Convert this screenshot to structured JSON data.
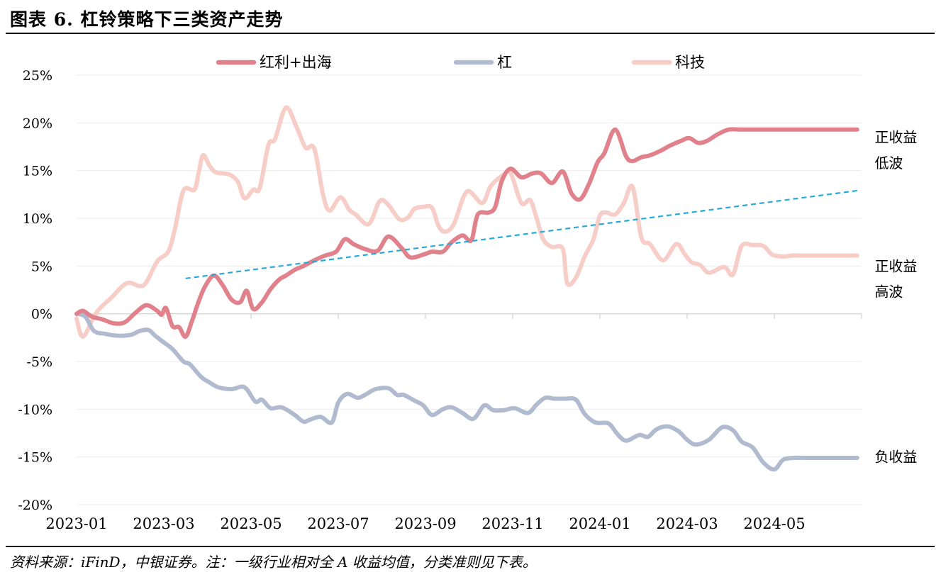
{
  "header": {
    "title": "图表 6. 杠铃策略下三类资产走势"
  },
  "footer": {
    "source": "资料来源：iFinD，中银证券。注：一级行业相对全 A 收益均值，分类准则见下表。"
  },
  "colors": {
    "red": "#e0818b",
    "gray": "#b1bbd0",
    "pink": "#f7cdc8",
    "trend": "#27aad8",
    "grid": "#ececec"
  },
  "chart_data": {
    "type": "line",
    "title": "杠铃策略下三类资产走势",
    "xlabel": "",
    "ylabel": "",
    "x_range": [
      0,
      18
    ],
    "ylim": [
      -20,
      25
    ],
    "yticks": [
      25,
      20,
      15,
      10,
      5,
      0,
      -5,
      -10,
      -15,
      -20
    ],
    "ytick_labels": [
      "25%",
      "20%",
      "15%",
      "10%",
      "5%",
      "0%",
      "-5%",
      "-10%",
      "-15%",
      "-20%"
    ],
    "xticks": [
      0,
      2,
      4,
      6,
      8,
      10,
      12,
      14,
      16
    ],
    "xtick_labels": [
      "2023-01",
      "2023-03",
      "2023-05",
      "2023-07",
      "2023-09",
      "2023-11",
      "2024-01",
      "2024-03",
      "2024-05"
    ],
    "legend": {
      "placement": "top",
      "entries": [
        "红利+出海",
        "杠",
        "科技"
      ]
    },
    "series": [
      {
        "name": "科技",
        "color": "#f7cdc8",
        "x": [
          0,
          0.15,
          0.45,
          0.8,
          1.15,
          1.45,
          1.6,
          1.85,
          2.1,
          2.25,
          2.45,
          2.7,
          2.8,
          2.9,
          3.05,
          3.2,
          3.5,
          3.7,
          3.85,
          4.05,
          4.2,
          4.4,
          4.55,
          4.8,
          5.05,
          5.25,
          5.45,
          5.65,
          5.8,
          6.05,
          6.25,
          6.4,
          6.7,
          6.95,
          7.15,
          7.4,
          7.6,
          7.75,
          7.95,
          8.15,
          8.3,
          8.45,
          8.65,
          8.95,
          9.3,
          9.5,
          9.8,
          9.95,
          10.2,
          10.4,
          10.55,
          10.7,
          10.9,
          11.15,
          11.25,
          11.45,
          11.65,
          11.85,
          12.0,
          12.15,
          12.35,
          12.55,
          12.75,
          12.95,
          13.15,
          13.45,
          13.75,
          13.95,
          14.1,
          14.3,
          14.5,
          14.85,
          15.05,
          15.25,
          15.5,
          15.75,
          15.95,
          16.2,
          16.4,
          16.6,
          16.8,
          17.05,
          17.3,
          17.5,
          17.75,
          17.9
        ],
        "y": [
          -0.5,
          -2.4,
          0.1,
          1.7,
          3.2,
          2.9,
          3.3,
          5.5,
          6.5,
          8.8,
          12.9,
          13.0,
          14.8,
          16.6,
          15.5,
          14.8,
          14.6,
          13.8,
          12.1,
          13.0,
          13.2,
          17.7,
          18.3,
          21.6,
          19.5,
          17.4,
          17.3,
          12.5,
          10.8,
          12.2,
          10.9,
          10.4,
          9.4,
          11.8,
          11.4,
          9.9,
          10.1,
          11.0,
          11.2,
          11.1,
          9.2,
          8.6,
          9.4,
          12.8,
          11.6,
          13.4,
          14.6,
          14.8,
          11.6,
          11.9,
          10.0,
          7.8,
          7.0,
          6.8,
          3.2,
          3.8,
          6.0,
          7.8,
          10.3,
          10.6,
          10.4,
          11.6,
          13.3,
          8.0,
          7.3,
          5.6,
          7.3,
          6.2,
          5.4,
          5.1,
          4.3,
          4.9,
          4.1,
          7.1,
          7.2,
          7.1,
          6.2,
          6.0,
          6.1,
          6.1,
          6.1,
          6.1,
          6.1,
          6.1,
          6.1,
          6.1
        ]
      },
      {
        "name": "杠",
        "color": "#b1bbd0",
        "x": [
          0,
          0.2,
          0.4,
          0.65,
          0.95,
          1.25,
          1.45,
          1.65,
          1.8,
          2.0,
          2.2,
          2.45,
          2.6,
          2.85,
          3.05,
          3.25,
          3.55,
          3.85,
          4.1,
          4.25,
          4.45,
          4.7,
          5.0,
          5.2,
          5.35,
          5.6,
          5.85,
          6.0,
          6.2,
          6.45,
          6.65,
          6.85,
          7.15,
          7.35,
          7.5,
          7.75,
          7.95,
          8.15,
          8.4,
          8.6,
          8.85,
          9.1,
          9.35,
          9.55,
          9.8,
          10.05,
          10.35,
          10.55,
          10.75,
          10.95,
          11.2,
          11.45,
          11.65,
          11.9,
          12.2,
          12.4,
          12.6,
          12.9,
          13.1,
          13.3,
          13.55,
          13.8,
          14.0,
          14.2,
          14.5,
          14.8,
          15.05,
          15.25,
          15.5,
          15.75,
          16.0,
          16.2,
          16.45,
          16.75,
          16.95,
          17.1,
          17.25,
          17.5,
          17.75,
          17.9
        ],
        "y": [
          0,
          -0.3,
          -1.8,
          -2.1,
          -2.3,
          -2.2,
          -1.8,
          -1.7,
          -2.3,
          -3.0,
          -3.7,
          -5.0,
          -5.3,
          -6.6,
          -7.2,
          -7.7,
          -7.9,
          -7.7,
          -9.2,
          -9.0,
          -9.9,
          -9.8,
          -10.6,
          -11.3,
          -11.1,
          -10.8,
          -11.4,
          -9.3,
          -8.4,
          -8.8,
          -8.4,
          -7.9,
          -7.8,
          -8.5,
          -8.5,
          -9.1,
          -9.6,
          -10.6,
          -10.0,
          -9.8,
          -10.4,
          -11.0,
          -9.6,
          -10.1,
          -10.1,
          -9.9,
          -10.4,
          -9.5,
          -8.8,
          -8.9,
          -8.9,
          -9.0,
          -10.5,
          -11.4,
          -11.5,
          -12.6,
          -13.3,
          -12.7,
          -12.9,
          -12.1,
          -11.8,
          -12.3,
          -13.2,
          -13.7,
          -13.2,
          -11.9,
          -12.2,
          -13.4,
          -14.0,
          -15.6,
          -16.3,
          -15.3,
          -15.1,
          -15.1,
          -15.1,
          -15.1,
          -15.1,
          -15.1,
          -15.1,
          -15.1
        ]
      },
      {
        "name": "红利+出海",
        "color": "#e0818b",
        "x": [
          0,
          0.15,
          0.35,
          0.6,
          0.85,
          1.1,
          1.35,
          1.6,
          1.85,
          1.95,
          2.05,
          2.2,
          2.35,
          2.5,
          2.65,
          2.8,
          2.95,
          3.15,
          3.35,
          3.55,
          3.75,
          3.9,
          4.05,
          4.25,
          4.45,
          4.65,
          4.8,
          5.0,
          5.2,
          5.45,
          5.7,
          5.95,
          6.15,
          6.35,
          6.6,
          6.9,
          7.15,
          7.45,
          7.65,
          7.95,
          8.15,
          8.4,
          8.6,
          8.85,
          9.05,
          9.2,
          9.45,
          9.6,
          9.75,
          9.95,
          10.2,
          10.45,
          10.65,
          10.9,
          11.15,
          11.35,
          11.55,
          11.75,
          11.95,
          12.1,
          12.35,
          12.6,
          12.75,
          12.95,
          13.15,
          13.4,
          13.6,
          13.85,
          14.05,
          14.25,
          14.45,
          14.7,
          14.95,
          15.2,
          15.4,
          15.6,
          15.8,
          16.05,
          16.3,
          16.5,
          16.7,
          16.9,
          17.15,
          17.4,
          17.6,
          17.75,
          17.9
        ],
        "y": [
          0,
          0.3,
          -0.3,
          -0.6,
          -1.0,
          -0.9,
          0.1,
          0.9,
          0.3,
          -0.1,
          0.6,
          -1.3,
          -1.4,
          -2.4,
          -0.7,
          1.3,
          2.9,
          4.0,
          3.0,
          1.5,
          1.2,
          2.4,
          0.5,
          1.2,
          2.6,
          3.6,
          4.0,
          4.6,
          5.0,
          5.6,
          6.1,
          6.5,
          7.8,
          7.3,
          6.8,
          6.6,
          8.1,
          6.9,
          5.9,
          6.2,
          6.5,
          6.5,
          7.5,
          8.2,
          7.7,
          10.4,
          10.6,
          11.2,
          13.9,
          15.2,
          14.3,
          14.7,
          14.7,
          13.7,
          14.9,
          12.6,
          12.0,
          13.6,
          15.9,
          16.8,
          19.3,
          16.5,
          16.0,
          16.4,
          16.6,
          17.1,
          17.6,
          18.1,
          18.4,
          17.9,
          18.1,
          18.8,
          19.3,
          19.3,
          19.3,
          19.3,
          19.3,
          19.3,
          19.3,
          19.3,
          19.3,
          19.3,
          19.3,
          19.3,
          19.3,
          19.3,
          19.3
        ]
      }
    ],
    "trend_line": {
      "name": "trend",
      "style": "dashed",
      "x": [
        2.5,
        17.9
      ],
      "y": [
        3.7,
        12.9
      ]
    },
    "annotations": [
      {
        "text": "正收益",
        "x": 18.3,
        "y": 18.5
      },
      {
        "text": "低波",
        "x": 18.3,
        "y": 15.8
      },
      {
        "text": "正收益",
        "x": 18.3,
        "y": 5.0
      },
      {
        "text": "高波",
        "x": 18.3,
        "y": 2.3
      },
      {
        "text": "负收益",
        "x": 18.3,
        "y": -15.0
      }
    ]
  }
}
